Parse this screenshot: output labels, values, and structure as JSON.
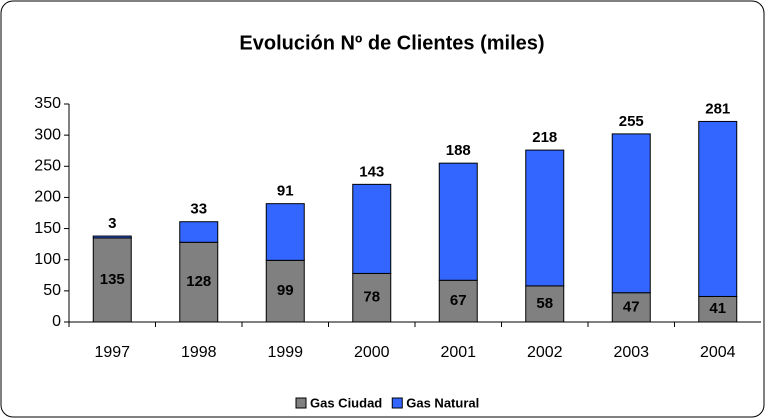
{
  "chart_data": {
    "type": "stacked_bar",
    "title": "Evolución Nº de Clientes (miles)",
    "categories": [
      "1997",
      "1998",
      "1999",
      "2000",
      "2001",
      "2002",
      "2003",
      "2004"
    ],
    "series": [
      {
        "name": "Gas Ciudad",
        "color": "#808080",
        "values": [
          135,
          128,
          99,
          78,
          67,
          58,
          47,
          41
        ]
      },
      {
        "name": "Gas Natural",
        "color": "#3366ff",
        "values": [
          3,
          33,
          91,
          143,
          188,
          218,
          255,
          281
        ]
      }
    ],
    "ylim": [
      0,
      350
    ],
    "yticks": [
      0,
      50,
      100,
      150,
      200,
      250,
      300,
      350
    ],
    "grid": false,
    "legend": "bottom"
  }
}
